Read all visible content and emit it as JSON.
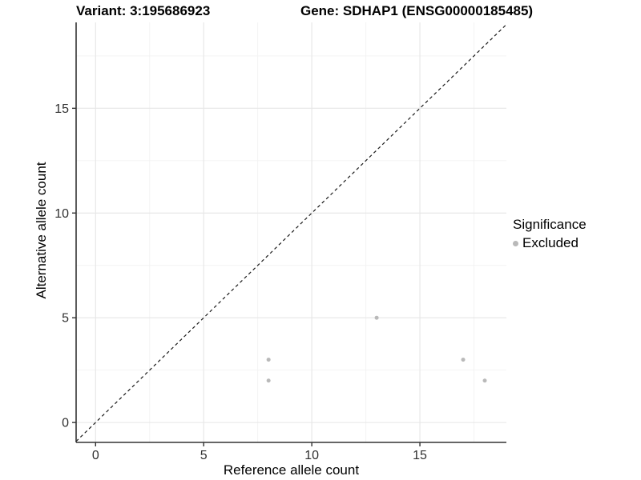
{
  "chart_data": {
    "type": "scatter",
    "title_left": "Variant: 3:195686923",
    "title_right": "Gene: SDHAP1 (ENSG00000185485)",
    "xlabel": "Reference allele count",
    "ylabel": "Alternative allele count",
    "xlim": [
      -0.9,
      19.0
    ],
    "ylim": [
      -0.95,
      19.1
    ],
    "x_ticks": [
      0,
      5,
      10,
      15
    ],
    "y_ticks": [
      0,
      5,
      10,
      15
    ],
    "x_minor": [
      2.5,
      7.5,
      12.5,
      17.5
    ],
    "y_minor": [
      2.5,
      7.5,
      12.5,
      17.5
    ],
    "grid": true,
    "reference_line": {
      "type": "identity",
      "slope": 1,
      "intercept": 0,
      "style": "dashed"
    },
    "series": [
      {
        "name": "Excluded",
        "color": "#b9b9b9",
        "points": [
          {
            "x": 8,
            "y": 2
          },
          {
            "x": 8,
            "y": 3
          },
          {
            "x": 13,
            "y": 5
          },
          {
            "x": 17,
            "y": 3
          },
          {
            "x": 18,
            "y": 2
          }
        ]
      }
    ],
    "legend": {
      "title": "Significance",
      "position": "right",
      "items": [
        "Excluded"
      ]
    },
    "colors": {
      "point": "#b9b9b9",
      "grid_major": "#e6e6e6",
      "grid_minor": "#f2f2f2",
      "axis_line": "#333333",
      "reference_line": "#1a1a1a",
      "tick_text": "#303030",
      "label_text": "#000000"
    }
  }
}
